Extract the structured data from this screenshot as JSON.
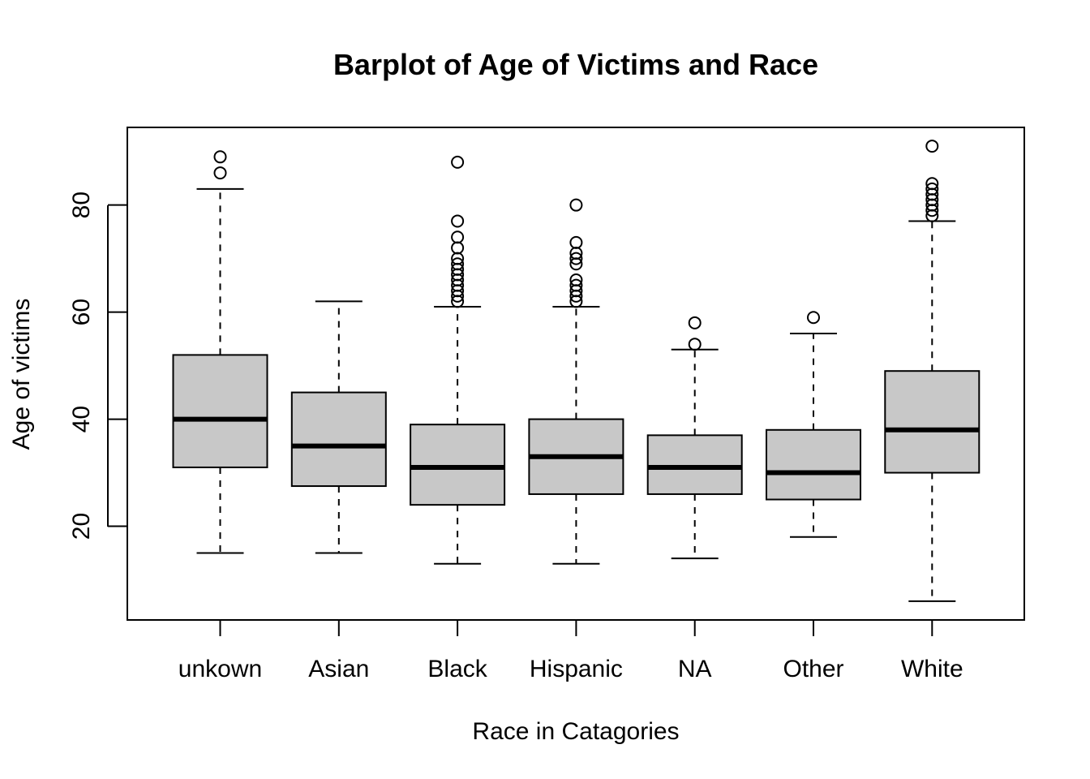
{
  "chart_data": {
    "type": "boxplot",
    "title": "Barplot of Age of Victims and Race",
    "xlabel": "Race in Catagories",
    "ylabel": "Age of victims",
    "ylim": [
      2.5,
      94.5
    ],
    "yticks": [
      20,
      40,
      60,
      80
    ],
    "grid": false,
    "legend": "none",
    "box_color": "#c8c8c8",
    "categories": [
      "unkown",
      "Asian",
      "Black",
      "Hispanic",
      "NA",
      "Other",
      "White"
    ],
    "boxes": [
      {
        "category": "unkown",
        "whisker_low": 15,
        "q1": 31,
        "median": 40,
        "q3": 52,
        "whisker_high": 83,
        "outliers": [
          86,
          89
        ]
      },
      {
        "category": "Asian",
        "whisker_low": 15,
        "q1": 27.5,
        "median": 35,
        "q3": 45,
        "whisker_high": 62,
        "outliers": []
      },
      {
        "category": "Black",
        "whisker_low": 13,
        "q1": 24,
        "median": 31,
        "q3": 39,
        "whisker_high": 61,
        "outliers": [
          62,
          63,
          64,
          65,
          66,
          67,
          68,
          69,
          70,
          72,
          74,
          77,
          88
        ]
      },
      {
        "category": "Hispanic",
        "whisker_low": 13,
        "q1": 26,
        "median": 33,
        "q3": 40,
        "whisker_high": 61,
        "outliers": [
          62,
          63,
          64,
          65,
          66,
          69,
          70,
          71,
          73,
          80
        ]
      },
      {
        "category": "NA",
        "whisker_low": 14,
        "q1": 26,
        "median": 31,
        "q3": 37,
        "whisker_high": 53,
        "outliers": [
          54,
          58
        ]
      },
      {
        "category": "Other",
        "whisker_low": 18,
        "q1": 25,
        "median": 30,
        "q3": 38,
        "whisker_high": 56,
        "outliers": [
          59
        ]
      },
      {
        "category": "White",
        "whisker_low": 6,
        "q1": 30,
        "median": 38,
        "q3": 49,
        "whisker_high": 77,
        "outliers": [
          78,
          79,
          80,
          81,
          82,
          83,
          84,
          91
        ]
      }
    ]
  }
}
